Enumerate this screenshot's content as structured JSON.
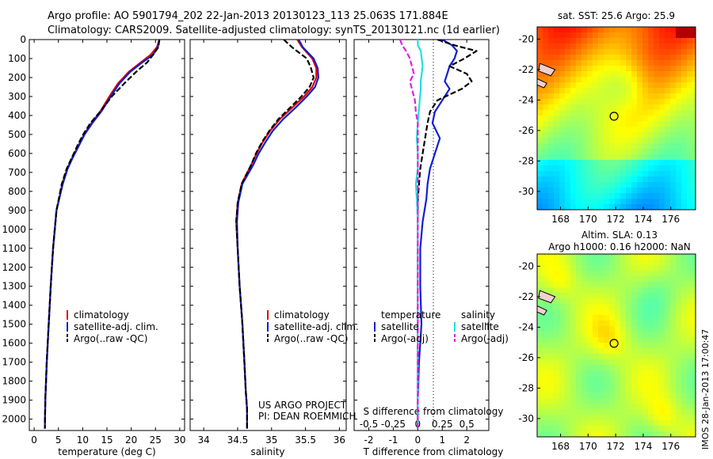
{
  "header": {
    "line1": "Argo profile: AO 5901794_202 22-Jan-2013 20130123_113 25.063S 171.884E",
    "line2": "Climatology: CARS2009. Satellite-adjusted climatology: synTS_20130121.nc (1d earlier)"
  },
  "colors": {
    "climatology": "#e00000",
    "satellite": "#1020d0",
    "argo": "#000000",
    "sat_salinity": "#20e0e0",
    "argo_salinity": "#e020e0"
  },
  "chart_data": [
    {
      "id": "temperature",
      "type": "line",
      "xlabel": "temperature (deg C)",
      "xlim": [
        -1,
        31
      ],
      "xticks": [
        "0",
        "5",
        "10",
        "15",
        "20",
        "25",
        "30"
      ],
      "xtick_values": [
        0,
        5,
        10,
        15,
        20,
        25,
        30
      ],
      "ylim": [
        0,
        2060
      ],
      "yticks": [
        "0",
        "100",
        "200",
        "300",
        "400",
        "500",
        "600",
        "700",
        "800",
        "900",
        "1000",
        "1100",
        "1200",
        "1300",
        "1400",
        "1500",
        "1600",
        "1700",
        "1800",
        "1900",
        "2000"
      ],
      "ytick_values": [
        0,
        100,
        200,
        300,
        400,
        500,
        600,
        700,
        800,
        900,
        1000,
        1100,
        1200,
        1300,
        1400,
        1500,
        1600,
        1700,
        1800,
        1900,
        2000
      ],
      "legend": [
        "climatology",
        "satellite-adj. clim.",
        "Argo(..raw -QC)"
      ],
      "series": [
        {
          "name": "climatology",
          "style": "solid",
          "x": [
            25.8,
            25.3,
            24,
            22,
            19.5,
            17.3,
            15.5,
            13.6,
            11.8,
            10.3,
            9.1,
            7.9,
            6.8,
            5.8,
            4.6,
            3.9,
            3.4,
            3.0,
            2.6,
            2.3,
            2.2
          ],
          "y": [
            0,
            40,
            80,
            120,
            170,
            230,
            300,
            380,
            440,
            500,
            560,
            620,
            680,
            760,
            900,
            1100,
            1300,
            1500,
            1700,
            1900,
            2050
          ]
        },
        {
          "name": "satellite",
          "style": "solid",
          "x": [
            25.8,
            25.5,
            24.5,
            22.3,
            19.8,
            17.6,
            15.8,
            13.8,
            12.0,
            10.4,
            9.2,
            8.0,
            6.9,
            5.9,
            4.6,
            3.9,
            3.4,
            3.0,
            2.6,
            2.3,
            2.2
          ],
          "y": [
            0,
            40,
            80,
            120,
            170,
            230,
            300,
            380,
            440,
            500,
            560,
            620,
            680,
            760,
            900,
            1100,
            1300,
            1500,
            1700,
            1900,
            2050
          ]
        },
        {
          "name": "argo",
          "style": "dashed",
          "x": [
            25.8,
            25.6,
            24.5,
            23.3,
            21.0,
            18.6,
            16.0,
            13.6,
            11.6,
            10.1,
            8.9,
            7.8,
            6.7,
            5.7,
            4.6,
            3.9,
            3.4,
            3.0,
            2.6,
            2.3,
            2.2
          ],
          "y": [
            0,
            40,
            80,
            120,
            170,
            230,
            300,
            380,
            440,
            500,
            560,
            620,
            680,
            760,
            900,
            1100,
            1300,
            1500,
            1700,
            1900,
            2050
          ]
        }
      ]
    },
    {
      "id": "salinity",
      "type": "line",
      "xlabel": "salinity",
      "xlim": [
        33.8,
        36.1
      ],
      "xticks": [
        "34",
        "34.5",
        "35",
        "35.5",
        "36"
      ],
      "xtick_values": [
        34,
        34.5,
        35,
        35.5,
        36
      ],
      "ylim": [
        0,
        2060
      ],
      "legend": [
        "climatology",
        "satellite-adj. clim.",
        "Argo(..raw -QC)"
      ],
      "credit_line1": "US ARGO PROJECT",
      "credit_line2": "PI: DEAN ROEMMICH",
      "series": [
        {
          "name": "climatology",
          "style": "solid",
          "x": [
            35.38,
            35.45,
            35.6,
            35.66,
            35.66,
            35.6,
            35.48,
            35.3,
            35.12,
            34.98,
            34.87,
            34.78,
            34.7,
            34.56,
            34.5,
            34.48,
            34.5,
            34.53,
            34.57,
            34.6,
            34.62,
            34.64,
            34.64
          ],
          "y": [
            0,
            40,
            100,
            150,
            200,
            250,
            300,
            360,
            420,
            480,
            540,
            600,
            660,
            760,
            860,
            960,
            1100,
            1300,
            1500,
            1700,
            1850,
            1950,
            2050
          ]
        },
        {
          "name": "satellite",
          "style": "solid",
          "x": [
            35.4,
            35.46,
            35.62,
            35.68,
            35.69,
            35.64,
            35.52,
            35.35,
            35.17,
            35.02,
            34.91,
            34.81,
            34.73,
            34.57,
            34.51,
            34.49,
            34.5,
            34.53,
            34.57,
            34.6,
            34.62,
            34.64,
            34.64
          ],
          "y": [
            0,
            40,
            100,
            150,
            200,
            250,
            300,
            360,
            420,
            480,
            540,
            600,
            660,
            760,
            860,
            960,
            1100,
            1300,
            1500,
            1700,
            1850,
            1950,
            2050
          ]
        },
        {
          "name": "argo",
          "style": "dashed",
          "x": [
            35.18,
            35.3,
            35.52,
            35.58,
            35.62,
            35.56,
            35.44,
            35.27,
            35.1,
            34.97,
            34.86,
            34.77,
            34.7,
            34.56,
            34.5,
            34.48,
            34.5,
            34.53,
            34.57,
            34.6,
            34.62,
            34.64,
            34.64
          ],
          "y": [
            0,
            40,
            100,
            150,
            200,
            250,
            300,
            360,
            420,
            480,
            540,
            600,
            660,
            760,
            860,
            960,
            1100,
            1300,
            1500,
            1700,
            1850,
            1950,
            2050
          ]
        }
      ]
    },
    {
      "id": "differences",
      "type": "line",
      "xlabel": "T difference from climatology",
      "xlim": [
        -2.6,
        2.9
      ],
      "xticks": [
        "-2",
        "-1",
        "0",
        "1",
        "2"
      ],
      "xtick_values": [
        -2,
        -1,
        0,
        1,
        2
      ],
      "s_xlabel": "S difference from climatology",
      "s_xticks": [
        "-0.5",
        "-0.25",
        "0",
        "0.25",
        "0.5"
      ],
      "s_xtick_values": [
        -0.5,
        -0.25,
        0,
        0.25,
        0.5
      ],
      "ylim": [
        0,
        2060
      ],
      "legend_temperature_title": "temperature",
      "legend_salinity_title": "salinity",
      "legend": [
        "satellite",
        "Argo(-adj)",
        "satellite",
        "Argo(-adj)"
      ],
      "series": [
        {
          "name": "T satellite",
          "style": "solid",
          "x": [
            1.0,
            1.4,
            1.6,
            1.5,
            1.3,
            1.2,
            1.1,
            1.3,
            1.0,
            0.7,
            0.6,
            0.9,
            0.7,
            0.5,
            0.4,
            0.35,
            0.2,
            0.1,
            0.1,
            0.15,
            0.05,
            0.0,
            0.0
          ],
          "y": [
            0,
            30,
            60,
            100,
            140,
            180,
            220,
            260,
            320,
            380,
            440,
            520,
            600,
            680,
            760,
            840,
            960,
            1100,
            1300,
            1500,
            1700,
            1900,
            2050
          ]
        },
        {
          "name": "T Argo",
          "style": "dashed",
          "x": [
            0.8,
            1.5,
            2.4,
            1.9,
            1.3,
            2.0,
            2.2,
            1.8,
            0.8,
            0.5,
            0.4,
            0.3,
            0.2,
            0.1,
            0.05,
            0.0,
            0.0,
            0.0,
            0.0,
            0.0,
            0.0,
            0.0,
            0.0
          ],
          "y": [
            0,
            30,
            60,
            100,
            140,
            180,
            220,
            260,
            320,
            380,
            440,
            520,
            600,
            680,
            760,
            840,
            960,
            1100,
            1300,
            1500,
            1700,
            1900,
            2050
          ]
        },
        {
          "name": "S satellite",
          "style": "solid",
          "x": [
            0.0,
            0.0,
            0.03,
            0.04,
            0.05,
            0.04,
            0.03,
            0.03,
            0.02,
            0.01,
            0.0,
            -0.01,
            0.0,
            0.0,
            -0.02,
            -0.01,
            0.0,
            0.0,
            0.0,
            0.0,
            0.0,
            0.0,
            0.0
          ],
          "y": [
            0,
            30,
            60,
            100,
            140,
            180,
            220,
            260,
            320,
            380,
            440,
            520,
            600,
            680,
            760,
            840,
            960,
            1100,
            1300,
            1500,
            1700,
            1900,
            2050
          ]
        },
        {
          "name": "S Argo",
          "style": "dashed",
          "x": [
            -0.18,
            -0.16,
            -0.12,
            -0.08,
            -0.06,
            -0.04,
            -0.08,
            -0.06,
            -0.03,
            -0.02,
            0.0,
            0.0,
            0.0,
            0.0,
            0.0,
            0.0,
            0.0,
            0.0,
            0.0,
            0.0,
            0.0,
            0.0,
            0.0
          ],
          "y": [
            0,
            30,
            60,
            100,
            140,
            180,
            220,
            260,
            320,
            380,
            440,
            520,
            600,
            680,
            760,
            840,
            960,
            1100,
            1300,
            1500,
            1700,
            1900,
            2050
          ]
        }
      ]
    },
    {
      "id": "sst_map",
      "type": "heatmap",
      "title": "sat. SST: 25.6  Argo: 25.9",
      "xlim": [
        166.3,
        177.8
      ],
      "ylim": [
        -31.2,
        -19.2
      ],
      "xticks": [
        "168",
        "170",
        "172",
        "174",
        "176"
      ],
      "xtick_values": [
        168,
        170,
        172,
        174,
        176
      ],
      "yticks": [
        "-20",
        "-22",
        "-24",
        "-26",
        "-28",
        "-30"
      ],
      "ytick_values": [
        -20,
        -22,
        -24,
        -26,
        -28,
        -30
      ],
      "marker": {
        "lon": 171.884,
        "lat": -25.063
      }
    },
    {
      "id": "sla_map",
      "type": "heatmap",
      "title1": "Altim. SLA: 0.13",
      "title2": "Argo h1000: 0.16 h2000: NaN",
      "xlim": [
        166.3,
        177.8
      ],
      "ylim": [
        -31.2,
        -19.2
      ],
      "xticks": [
        "168",
        "170",
        "172",
        "174",
        "176"
      ],
      "xtick_values": [
        168,
        170,
        172,
        174,
        176
      ],
      "yticks": [
        "-20",
        "-22",
        "-24",
        "-26",
        "-28",
        "-30"
      ],
      "ytick_values": [
        -20,
        -22,
        -24,
        -26,
        -28,
        -30
      ],
      "marker": {
        "lon": 171.884,
        "lat": -25.063
      }
    }
  ],
  "stamp": "IMOS 28-Jan-2013 17:00:47"
}
